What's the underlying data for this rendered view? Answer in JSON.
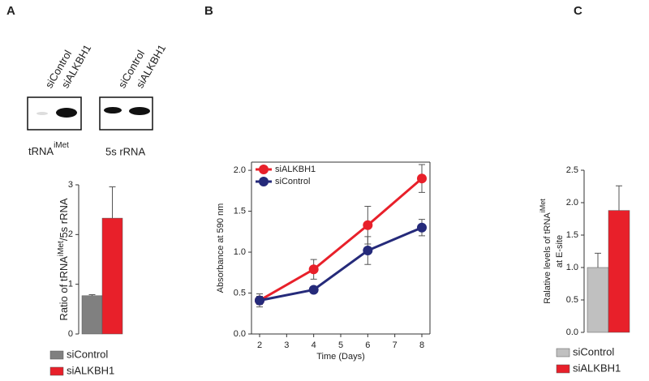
{
  "chart_data": [
    {
      "type": "bar",
      "panel": "A",
      "lane_labels": [
        "siControl",
        "siALKBH1"
      ],
      "blot_labels": [
        {
          "text": "tRNA",
          "sup": "iMet"
        },
        {
          "text": "5s rRNA"
        }
      ],
      "y_label": {
        "text": "Ratio of tRNA",
        "sup": "iMet",
        "end": "/5s rRNA"
      },
      "ylim": [
        0,
        3
      ],
      "yticks": [
        0,
        1,
        2,
        3
      ],
      "series": [
        {
          "name": "siControl",
          "color": "#808080",
          "values": [
            0.77
          ],
          "errors": [
            0.02
          ]
        },
        {
          "name": "siALKBH1",
          "color": "#e8202a",
          "values": [
            2.33
          ],
          "errors": [
            0.63
          ]
        }
      ]
    },
    {
      "type": "line",
      "panel": "B",
      "x_label": "Time (Days)",
      "y_label": "Absorbance at 590 nm",
      "x": [
        2,
        4,
        6,
        8
      ],
      "xlim": [
        1.7,
        8.3
      ],
      "xticks": [
        2,
        3,
        4,
        5,
        6,
        7,
        8
      ],
      "ylim": [
        0,
        2.1
      ],
      "yticks": [
        {
          "value": 0,
          "label": "0.0"
        },
        {
          "value": 0.5,
          "label": "0.5"
        },
        {
          "value": 1,
          "label": "1.0"
        },
        {
          "value": 1.5,
          "label": "1.5"
        },
        {
          "value": 2,
          "label": "2.0"
        }
      ],
      "series": [
        {
          "name": "siALKBH1",
          "color": "#e8202a",
          "values": [
            0.41,
            0.79,
            1.33,
            1.9
          ],
          "errors": [
            0.08,
            0.12,
            0.23,
            0.17
          ]
        },
        {
          "name": "siControl",
          "color": "#252a7a",
          "values": [
            0.41,
            0.54,
            1.02,
            1.3
          ],
          "errors": [
            0.05,
            0.03,
            0.17,
            0.1
          ]
        }
      ]
    },
    {
      "type": "bar",
      "panel": "C",
      "y_label": {
        "text": "Ralative levels of tRNA",
        "sup": "iMet",
        "line2": "at E-site"
      },
      "ylim": [
        0,
        2.5
      ],
      "yticks": [
        {
          "value": 0,
          "label": "0.0"
        },
        {
          "value": 0.5,
          "label": "0.5"
        },
        {
          "value": 1,
          "label": "1.0"
        },
        {
          "value": 1.5,
          "label": "1.5"
        },
        {
          "value": 2,
          "label": "2.0"
        },
        {
          "value": 2.5,
          "label": "2.5"
        }
      ],
      "series": [
        {
          "name": "siControl",
          "color": "#c0c0c0",
          "values": [
            1.0
          ],
          "errors": [
            0.22
          ]
        },
        {
          "name": "siALKBH1",
          "color": "#e8202a",
          "values": [
            1.88
          ],
          "errors": [
            0.38
          ]
        }
      ]
    }
  ]
}
